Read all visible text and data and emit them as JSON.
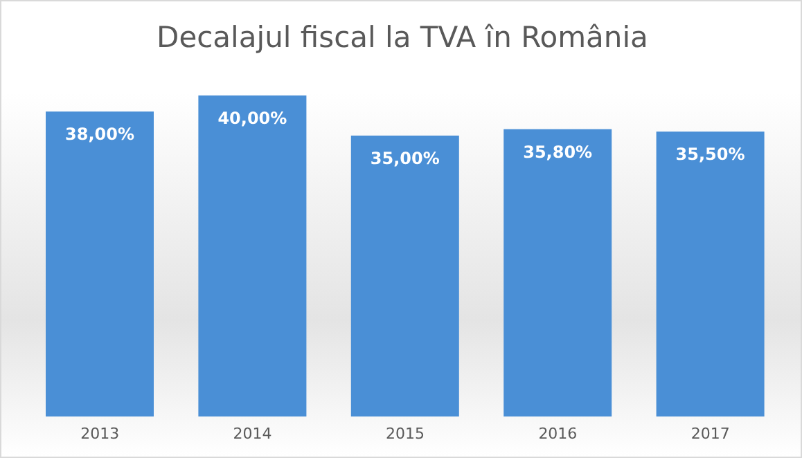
{
  "chart_data": {
    "type": "bar",
    "title": "Decalajul fiscal la TVA în România",
    "categories": [
      "2013",
      "2014",
      "2015",
      "2016",
      "2017"
    ],
    "values": [
      38,
      40,
      35,
      35.8,
      35.5
    ],
    "value_labels": [
      "38,00%",
      "40,00%",
      "35,00%",
      "35,80%",
      "35,50%"
    ],
    "color": "#4a8fd6",
    "tick_labels": "x",
    "grid": false,
    "legend": false
  }
}
